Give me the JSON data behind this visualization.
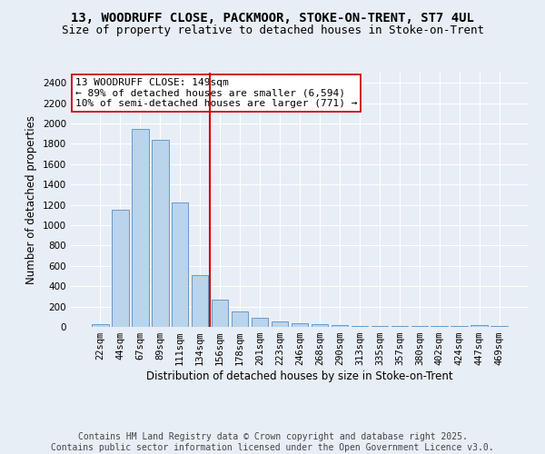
{
  "title1": "13, WOODRUFF CLOSE, PACKMOOR, STOKE-ON-TRENT, ST7 4UL",
  "title2": "Size of property relative to detached houses in Stoke-on-Trent",
  "xlabel": "Distribution of detached houses by size in Stoke-on-Trent",
  "ylabel": "Number of detached properties",
  "categories": [
    "22sqm",
    "44sqm",
    "67sqm",
    "89sqm",
    "111sqm",
    "134sqm",
    "156sqm",
    "178sqm",
    "201sqm",
    "223sqm",
    "246sqm",
    "268sqm",
    "290sqm",
    "313sqm",
    "335sqm",
    "357sqm",
    "380sqm",
    "402sqm",
    "424sqm",
    "447sqm",
    "469sqm"
  ],
  "values": [
    28,
    1150,
    1950,
    1840,
    1220,
    510,
    270,
    155,
    90,
    50,
    40,
    25,
    15,
    5,
    5,
    5,
    5,
    5,
    5,
    18,
    5
  ],
  "bar_color": "#bad4ec",
  "bar_edge_color": "#6699cc",
  "vline_x": 5.5,
  "vline_color": "#cc0000",
  "annotation_text": "13 WOODRUFF CLOSE: 149sqm\n← 89% of detached houses are smaller (6,594)\n10% of semi-detached houses are larger (771) →",
  "annotation_box_color": "#ffffff",
  "annotation_box_edge_color": "#cc0000",
  "ylim": [
    0,
    2500
  ],
  "yticks": [
    0,
    200,
    400,
    600,
    800,
    1000,
    1200,
    1400,
    1600,
    1800,
    2000,
    2200,
    2400
  ],
  "footer_text": "Contains HM Land Registry data © Crown copyright and database right 2025.\nContains public sector information licensed under the Open Government Licence v3.0.",
  "bg_color": "#e8eef6",
  "plot_bg_color": "#e8eef6",
  "grid_color": "#ffffff",
  "title_fontsize": 10,
  "subtitle_fontsize": 9,
  "axis_label_fontsize": 8.5,
  "tick_fontsize": 7.5,
  "annotation_fontsize": 8,
  "footer_fontsize": 7
}
